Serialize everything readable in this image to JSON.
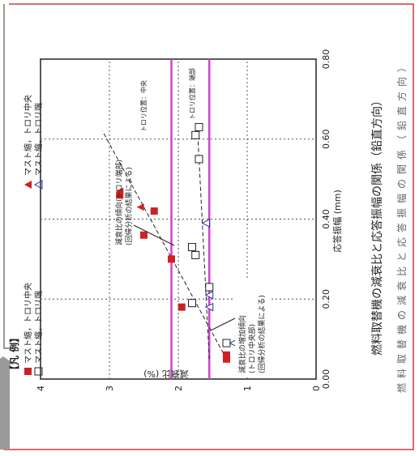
{
  "chart_data": {
    "type": "scatter",
    "rotated_ccw": true,
    "legend": {
      "heading": "【凡 例】",
      "items": [
        {
          "label": "マスト縮，トロリ中央",
          "marker": "filled-square",
          "color": "#cc2222"
        },
        {
          "label": "マスト縮，トロリ端",
          "marker": "open-square",
          "color": "#222222"
        },
        {
          "label": "マスト縮，トロリ中央",
          "marker": "filled-triangle",
          "color": "#cc2222"
        },
        {
          "label": "マスト縮，トロリ端",
          "marker": "open-triangle",
          "color": "#2233aa"
        }
      ]
    },
    "xlabel": "応答振幅 (mm)",
    "ylabel": "減衰比 (%)",
    "xlim": [
      0.0,
      0.8
    ],
    "ylim": [
      0,
      4
    ],
    "xticks": [
      "0.00",
      "0.20",
      "0.40",
      "0.60",
      "0.80"
    ],
    "yticks": [
      "0",
      "1",
      "2",
      "3",
      "4"
    ],
    "grid": true,
    "series": [
      {
        "name": "マスト縮，トロリ中央",
        "marker": "filled-square",
        "color": "#cc2222",
        "points": [
          [
            0.05,
            1.3
          ],
          [
            0.06,
            1.3
          ],
          [
            0.18,
            1.95
          ],
          [
            0.3,
            2.1
          ],
          [
            0.36,
            2.5
          ],
          [
            0.42,
            2.35
          ],
          [
            0.46,
            2.85
          ]
        ]
      },
      {
        "name": "マスト縮，トロリ端",
        "marker": "open-square",
        "color": "#222222",
        "points": [
          [
            0.09,
            1.3
          ],
          [
            0.19,
            1.8
          ],
          [
            0.23,
            1.55
          ],
          [
            0.31,
            1.75
          ],
          [
            0.33,
            1.8
          ],
          [
            0.55,
            1.7
          ],
          [
            0.61,
            1.75
          ],
          [
            0.63,
            1.7
          ]
        ]
      },
      {
        "name": "マスト縮，トロリ中央",
        "marker": "filled-triangle",
        "color": "#cc2222",
        "points": [
          [
            0.06,
            1.3
          ],
          [
            0.43,
            2.55
          ],
          [
            0.47,
            2.85
          ]
        ]
      },
      {
        "name": "マスト縮，トロリ端",
        "marker": "open-triangle",
        "color": "#2233aa",
        "points": [
          [
            0.09,
            1.2
          ],
          [
            0.18,
            1.55
          ],
          [
            0.21,
            1.55
          ],
          [
            0.39,
            1.6
          ]
        ]
      }
    ],
    "trend_lines": [
      {
        "from": [
          0.05,
          1.3
        ],
        "to": [
          0.62,
          3.1
        ],
        "style": "dashed"
      },
      {
        "from": [
          0.05,
          1.55
        ],
        "to": [
          0.62,
          1.72
        ],
        "style": "dashed"
      }
    ],
    "reference_lines": [
      {
        "y": 2.1,
        "color": "#cc44cc",
        "label": "トロリ位置：中央"
      },
      {
        "y": 1.55,
        "color": "#cc44cc",
        "label": "トロリ位置：端部"
      }
    ],
    "annotations": [
      {
        "text": "減衰比の増加傾向\n(トロリ中央部)\n(回帰分析の結果による)",
        "arrow_to": [
          0.11,
          1.55
        ]
      },
      {
        "text": "減衰比の傾向(トロリ端部)\n(回帰分析の結果による)",
        "arrow_to": [
          0.28,
          1.65
        ]
      }
    ],
    "title": "燃料取替機の減衰比と応答振幅の関係（鉛直方向）"
  },
  "caption": "燃料取替機の減衰比と応答振幅の関係（鉛直方向）"
}
